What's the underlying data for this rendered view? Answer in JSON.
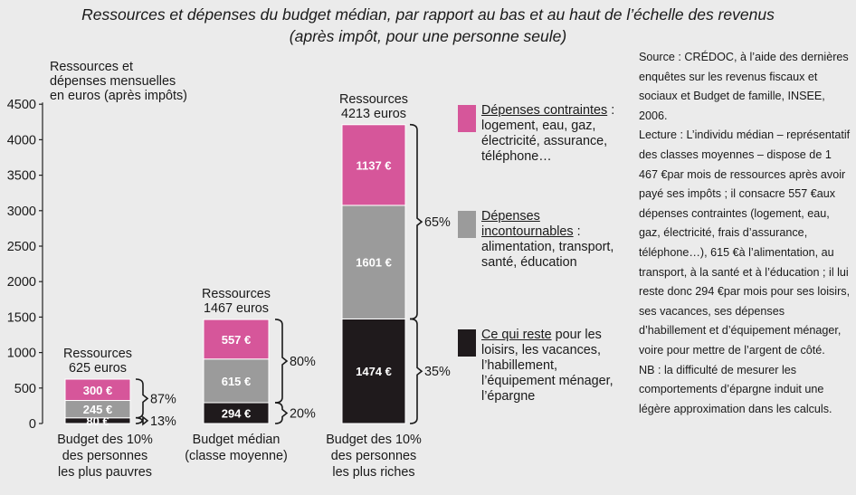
{
  "title": {
    "line1": "Ressources et dépenses du budget médian, par rapport au bas et au haut de l’échelle des revenus",
    "line2": "(après impôt, pour une personne seule)"
  },
  "colors": {
    "contraintes": "#d6569a",
    "incontournables": "#9b9b9b",
    "reste": "#1f1a1c",
    "background": "#ebebeb"
  },
  "legend": [
    {
      "key": "contraintes",
      "head": "Dépenses contraintes",
      "tail": " :",
      "desc": "logement, eau, gaz,\nélectricité, assurance,\ntéléphone…"
    },
    {
      "key": "incontournables",
      "head": "Dépenses\nincontournables",
      "tail": " :",
      "desc": "alimentation, transport,\nsanté, éducation"
    },
    {
      "key": "reste",
      "head": "Ce qui reste",
      "tail": " pour les",
      "desc": "loisirs, les vacances,\nl’habillement,\nl’équipement ménager,\nl’épargne"
    }
  ],
  "source": [
    "Source : CRÉDOC, à l’aide des dernières enquêtes sur les revenus fiscaux et sociaux et Budget de famille, INSEE, 2006.",
    "Lecture : L’individu médian – représentatif des classes moyennes – dispose de 1 467 €par mois de ressources après avoir payé ses impôts ; il consacre 557 €aux dépenses contraintes (logement, eau, gaz, électricité, frais d’assurance, téléphone…), 615 €à l’alimentation, au transport, à la santé et à l’éducation ; il lui reste donc 294 €par mois pour ses loisirs, ses vacances, ses dépenses d’habillement et d’équipement ménager, voire pour mettre de l’argent de côté.",
    "NB : la difficulté de mesurer les comportements d’épargne induit une légère approximation dans les calculs."
  ],
  "chart_data": {
    "type": "bar",
    "stacked": true,
    "ylabel": "Ressources et\ndépenses mensuelles\nen euros (après impôts)",
    "ylim": [
      0,
      4500
    ],
    "yticks": [
      0,
      500,
      1000,
      1500,
      2000,
      2500,
      3000,
      3500,
      4000,
      4500
    ],
    "grid": false,
    "legend_position": "right",
    "categories": [
      "Budget des 10%\ndes personnes\nles plus pauvres",
      "Budget médian\n(classe moyenne)",
      "Budget des 10%\ndes personnes\nles plus riches"
    ],
    "totals_labels": [
      "Ressources\n625 euros",
      "Ressources\n1467 euros",
      "Ressources\n4213 euros"
    ],
    "series": [
      {
        "key": "reste",
        "values": [
          80,
          294,
          1474
        ],
        "labels": [
          "80 €",
          "294 €",
          "1474 €"
        ]
      },
      {
        "key": "incontournables",
        "values": [
          245,
          615,
          1601
        ],
        "labels": [
          "245 €",
          "615 €",
          "1601 €"
        ]
      },
      {
        "key": "contraintes",
        "values": [
          300,
          557,
          1137
        ],
        "labels": [
          "300 €",
          "557 €",
          "1137 €"
        ]
      }
    ],
    "brackets": [
      [
        {
          "from": 80,
          "to": 625,
          "label": "87%"
        },
        {
          "from": 0,
          "to": 80,
          "label": "13%"
        }
      ],
      [
        {
          "from": 294,
          "to": 1467,
          "label": "80%"
        },
        {
          "from": 0,
          "to": 294,
          "label": "20%"
        }
      ],
      [
        {
          "from": 1474,
          "to": 4213,
          "label": "65%"
        },
        {
          "from": 0,
          "to": 1474,
          "label": "35%"
        }
      ]
    ]
  }
}
